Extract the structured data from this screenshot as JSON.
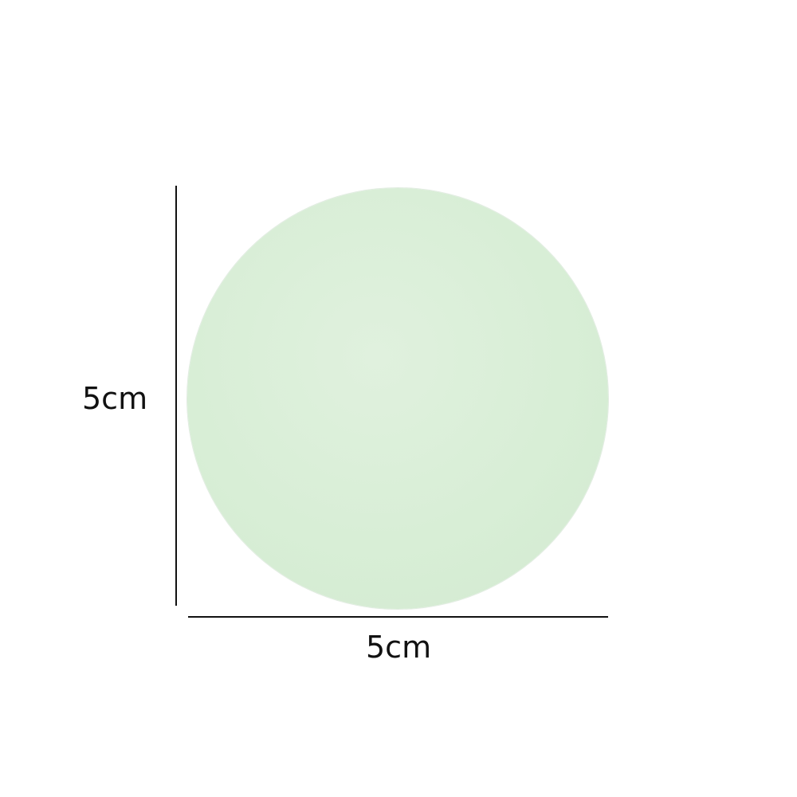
{
  "figure": {
    "disc_color": "#d8eed6",
    "line_color": "#111111",
    "height_label": "5cm",
    "width_label": "5cm"
  }
}
